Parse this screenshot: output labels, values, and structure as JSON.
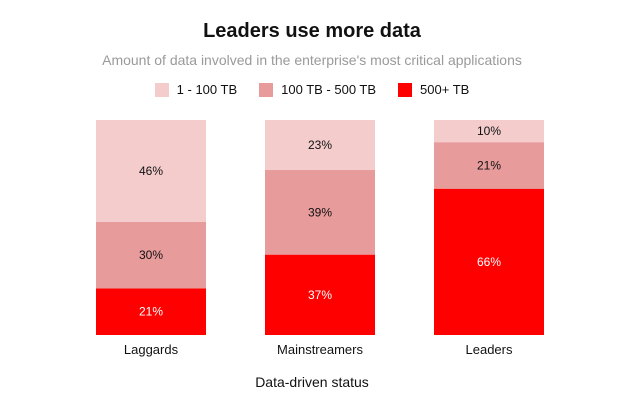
{
  "chart_data": {
    "type": "bar",
    "stacked": true,
    "orientation": "vertical",
    "title": "Leaders use more data",
    "subtitle": "Amount of data involved in the enterprise's most critical applications",
    "xlabel": "Data-driven status",
    "ylabel": "",
    "categories": [
      "Laggards",
      "Mainstreamers",
      "Leaders"
    ],
    "series": [
      {
        "name": "500+ TB",
        "values": [
          21,
          37,
          66
        ],
        "color": "#ff0000",
        "label_color": "#ffffff"
      },
      {
        "name": "100 TB - 500 TB",
        "values": [
          30,
          39,
          21
        ],
        "color": "#e89b9b",
        "label_color": "#111111"
      },
      {
        "name": "1 - 100 TB",
        "values": [
          46,
          23,
          10
        ],
        "color": "#f4cccc",
        "label_color": "#111111"
      }
    ],
    "legend_order": [
      2,
      1,
      0
    ],
    "legend_position": "top-center",
    "value_suffix": "%",
    "grid": false
  }
}
